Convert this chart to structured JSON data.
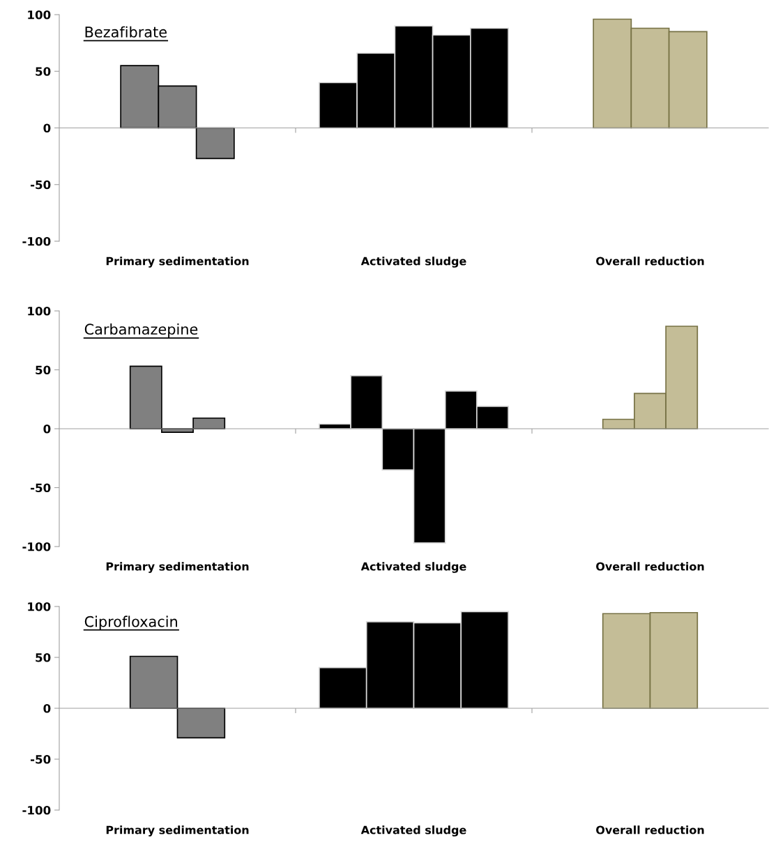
{
  "chart_data": [
    {
      "type": "bar",
      "title": "Bezafibrate",
      "categories": [
        "Primary sedimentation",
        "Activated sludge",
        "Overall reduction"
      ],
      "ylim": [
        -100,
        100
      ],
      "yticks": [
        -100,
        -50,
        0,
        50,
        100
      ],
      "legend": false,
      "series": [
        {
          "values": [
            55,
            40,
            96
          ],
          "colors": [
            "#808080",
            "#000000",
            "#c4bd97"
          ]
        },
        {
          "values": [
            37,
            66,
            88
          ],
          "colors": [
            "#808080",
            "#000000",
            "#c4bd97"
          ]
        },
        {
          "values": [
            -27,
            90,
            85
          ],
          "colors": [
            "#808080",
            "#000000",
            "#c4bd97"
          ]
        },
        {
          "values": [
            null,
            82,
            null
          ],
          "colors": [
            "#808080",
            "#000000",
            "#c4bd97"
          ]
        },
        {
          "values": [
            null,
            88,
            null
          ],
          "colors": [
            "#808080",
            "#000000",
            "#c4bd97"
          ]
        }
      ]
    },
    {
      "type": "bar",
      "title": "Carbamazepine",
      "categories": [
        "Primary sedimentation",
        "Activated sludge",
        "Overall reduction"
      ],
      "ylim": [
        -100,
        100
      ],
      "yticks": [
        -100,
        -50,
        0,
        50,
        100
      ],
      "legend": false,
      "series": [
        {
          "values": [
            53,
            4,
            8
          ],
          "colors": [
            "#808080",
            "#000000",
            "#c4bd97"
          ]
        },
        {
          "values": [
            -3,
            45,
            30
          ],
          "colors": [
            "#808080",
            "#000000",
            "#c4bd97"
          ]
        },
        {
          "values": [
            9,
            -35,
            87
          ],
          "colors": [
            "#808080",
            "#000000",
            "#c4bd97"
          ]
        },
        {
          "values": [
            null,
            -97,
            null
          ],
          "colors": [
            "#808080",
            "#000000",
            "#c4bd97"
          ]
        },
        {
          "values": [
            null,
            32,
            null
          ],
          "colors": [
            "#808080",
            "#000000",
            "#c4bd97"
          ]
        },
        {
          "values": [
            null,
            19,
            null
          ],
          "colors": [
            "#808080",
            "#000000",
            "#c4bd97"
          ]
        }
      ]
    },
    {
      "type": "bar",
      "title": "Ciprofloxacin",
      "categories": [
        "Primary sedimentation",
        "Activated sludge",
        "Overall reduction"
      ],
      "ylim": [
        -100,
        100
      ],
      "yticks": [
        -100,
        -50,
        0,
        50,
        100
      ],
      "legend": false,
      "series": [
        {
          "values": [
            51,
            40,
            93
          ],
          "colors": [
            "#808080",
            "#000000",
            "#c4bd97"
          ]
        },
        {
          "values": [
            -29,
            85,
            94
          ],
          "colors": [
            "#808080",
            "#000000",
            "#c4bd97"
          ]
        },
        {
          "values": [
            null,
            84,
            null
          ],
          "colors": [
            "#808080",
            "#000000",
            "#c4bd97"
          ]
        },
        {
          "values": [
            null,
            95,
            null
          ],
          "colors": [
            "#808080",
            "#000000",
            "#c4bd97"
          ]
        }
      ]
    }
  ]
}
